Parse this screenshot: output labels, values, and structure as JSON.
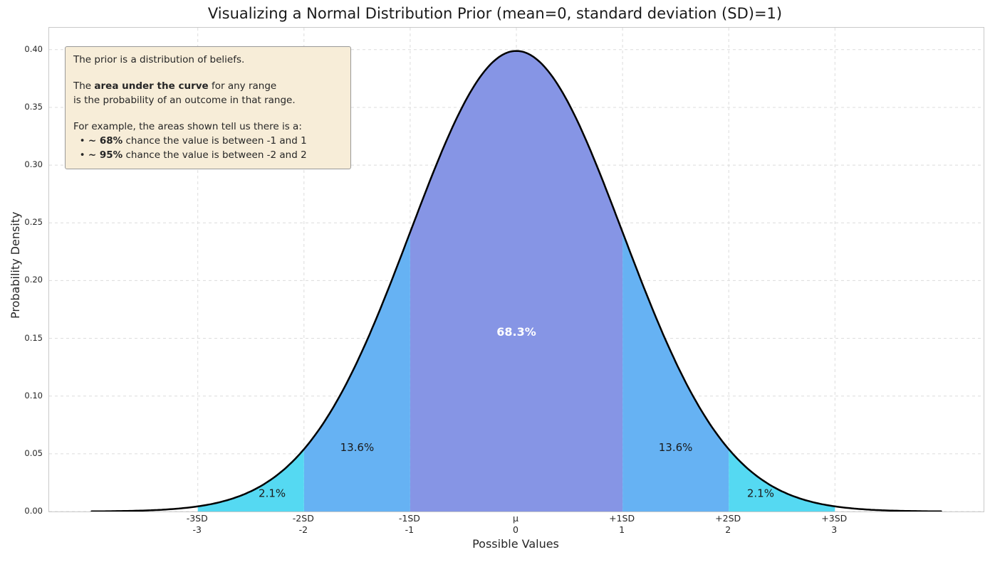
{
  "title": "Visualizing a Normal Distribution Prior (mean=0, standard deviation (SD)=1)",
  "axes": {
    "xlabel": "Possible Values",
    "ylabel": "Probability Density"
  },
  "annotation": {
    "bg": "#f7edd8",
    "border": "#999999",
    "lines": [
      [
        {
          "t": "The prior is a distribution of beliefs."
        }
      ],
      [],
      [
        {
          "t": "The "
        },
        {
          "t": "area under the curve",
          "b": true
        },
        {
          "t": " for any range"
        }
      ],
      [
        {
          "t": "is the probability of an outcome in that range."
        }
      ],
      [],
      [
        {
          "t": "For example, the areas shown tell us there is a:"
        }
      ],
      [
        {
          "t": "  • "
        },
        {
          "t": "~ 68%",
          "b": true
        },
        {
          "t": " chance the value is between -1 and 1"
        }
      ],
      [
        {
          "t": "  • "
        },
        {
          "t": "~ 95%",
          "b": true
        },
        {
          "t": " chance the value is between -2 and 2"
        }
      ]
    ]
  },
  "chart_data": {
    "type": "area",
    "title": "Visualizing a Normal Distribution Prior (mean=0, standard deviation (SD)=1)",
    "xlabel": "Possible Values",
    "ylabel": "Probability Density",
    "distribution": {
      "name": "normal",
      "mean": 0,
      "sd": 1,
      "pdf_peak": 0.3989
    },
    "curve": {
      "color": "#000000",
      "width": 2.5,
      "x_start": -4,
      "x_end": 4
    },
    "xlim": [
      -4.4,
      4.4
    ],
    "ylim": [
      0,
      0.419
    ],
    "grid": {
      "show": true,
      "style": "dashed",
      "color": "#dcdcdc"
    },
    "yticks": [
      {
        "value": 0.0,
        "label": "0.00"
      },
      {
        "value": 0.05,
        "label": "0.05"
      },
      {
        "value": 0.1,
        "label": "0.10"
      },
      {
        "value": 0.15,
        "label": "0.15"
      },
      {
        "value": 0.2,
        "label": "0.20"
      },
      {
        "value": 0.25,
        "label": "0.25"
      },
      {
        "value": 0.3,
        "label": "0.30"
      },
      {
        "value": 0.35,
        "label": "0.35"
      },
      {
        "value": 0.4,
        "label": "0.40"
      }
    ],
    "xticks": [
      {
        "value": -3,
        "sd": "-3SD",
        "num": "-3"
      },
      {
        "value": -2,
        "sd": "-2SD",
        "num": "-2"
      },
      {
        "value": -1,
        "sd": "-1SD",
        "num": "-1"
      },
      {
        "value": 0,
        "sd": "μ",
        "num": "0"
      },
      {
        "value": 1,
        "sd": "+1SD",
        "num": "1"
      },
      {
        "value": 2,
        "sd": "+2SD",
        "num": "2"
      },
      {
        "value": 3,
        "sd": "+3SD",
        "num": "3"
      }
    ],
    "regions": [
      {
        "range": [
          -1,
          1
        ],
        "color": "#8695e5",
        "label": "68.3%",
        "label_x": 0,
        "label_y": 0.155,
        "label_color": "#ffffff",
        "bold": true
      },
      {
        "range": [
          -2,
          -1
        ],
        "color": "#66b2f3",
        "label": "13.6%",
        "label_x": -1.5,
        "label_y": 0.055,
        "label_color": "#1a1a1a",
        "bold": false
      },
      {
        "range": [
          1,
          2
        ],
        "color": "#66b2f3",
        "label": "13.6%",
        "label_x": 1.5,
        "label_y": 0.055,
        "label_color": "#1a1a1a",
        "bold": false
      },
      {
        "range": [
          -3,
          -2
        ],
        "color": "#55d9f2",
        "label": "2.1%",
        "label_x": -2.3,
        "label_y": 0.0155,
        "label_color": "#1a1a1a",
        "bold": false
      },
      {
        "range": [
          2,
          3
        ],
        "color": "#55d9f2",
        "label": "2.1%",
        "label_x": 2.3,
        "label_y": 0.0155,
        "label_color": "#1a1a1a",
        "bold": false
      }
    ]
  }
}
